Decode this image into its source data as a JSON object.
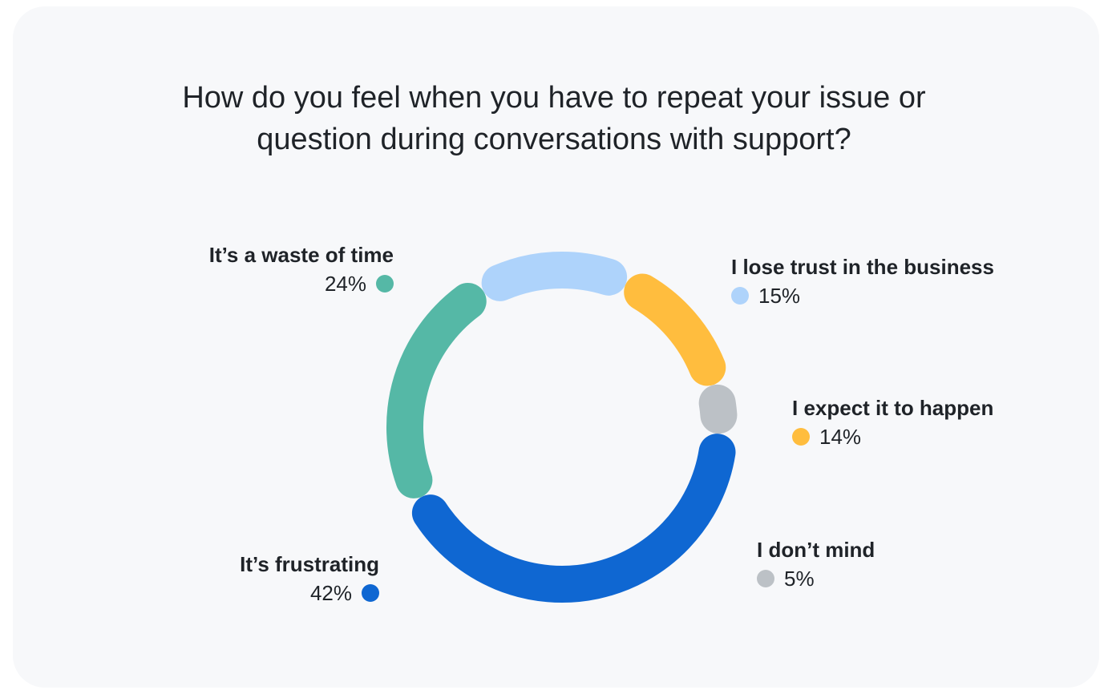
{
  "chart_data": {
    "type": "pie",
    "title_lines": [
      "How do you feel when you have to repeat your issue or",
      "question during conversations with support?"
    ],
    "slices": [
      {
        "label": "It’s a waste of time",
        "value": 24,
        "value_label": "24%",
        "color": "#55b8a6"
      },
      {
        "label": "I lose trust in the business",
        "value": 15,
        "value_label": "15%",
        "color": "#aed3fb"
      },
      {
        "label": "I expect it to happen",
        "value": 14,
        "value_label": "14%",
        "color": "#ffbd3e"
      },
      {
        "label": "I don’t mind",
        "value": 5,
        "value_label": "5%",
        "color": "#bcc1c6"
      },
      {
        "label": "It’s frustrating",
        "value": 42,
        "value_label": "42%",
        "color": "#0f67d2"
      }
    ],
    "donut": true,
    "legend": "around-chart"
  }
}
